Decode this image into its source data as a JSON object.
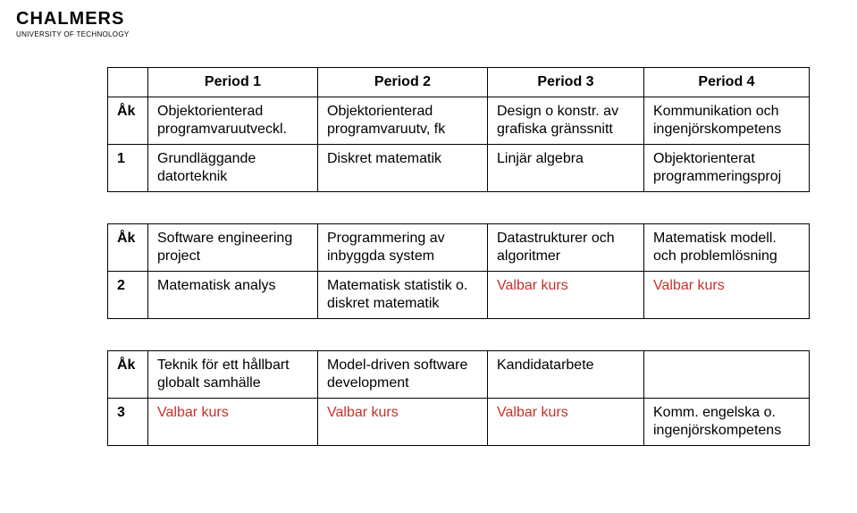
{
  "logo": {
    "name": "CHALMERS",
    "subtitle": "UNIVERSITY OF TECHNOLOGY"
  },
  "headers": {
    "ak": "Åk",
    "p1": "Period 1",
    "p2": "Period 2",
    "p3": "Period 3",
    "p4": "Period 4"
  },
  "year1": {
    "ak_first": "Åk",
    "ak_num": "1",
    "r1c1": "Objektorienterad programvaruutveckl.",
    "r1c2": "Objektorienterad programvaruutv, fk",
    "r1c3": "Design o konstr. av grafiska gränssnitt",
    "r1c4": "Kommunikation och ingenjörskompetens",
    "r2c1": "Grundläggande datorteknik",
    "r2c2": "Diskret matematik",
    "r2c3": "Linjär algebra",
    "r2c4": "Objektorienterat programmeringsproj"
  },
  "year2": {
    "ak_first": "Åk",
    "ak_num": "2",
    "r1c1": "Software engineering project",
    "r1c2": "Programmering av inbyggda system",
    "r1c3": "Datastrukturer och algoritmer",
    "r1c4": "Matematisk modell. och problemlösning",
    "r2c1": "Matematisk analys",
    "r2c2": "Matematisk statistik o. diskret matematik",
    "r2c3": "Valbar kurs",
    "r2c4": "Valbar kurs"
  },
  "year3": {
    "ak_first": "Åk",
    "ak_num": "3",
    "r1c1": "Teknik för ett hållbart globalt samhälle",
    "r1c2": "Model-driven soft­ware development",
    "r1c3": "Kandidatarbete",
    "r1c4": "",
    "r2c1": "Valbar kurs",
    "r2c2": "Valbar kurs",
    "r2c3": "Valbar kurs",
    "r2c4": "Komm. engelska o. ingenjörskompetens"
  },
  "colors": {
    "text": "#000000",
    "border": "#000000",
    "red": "#c5312a",
    "background": "#ffffff"
  }
}
